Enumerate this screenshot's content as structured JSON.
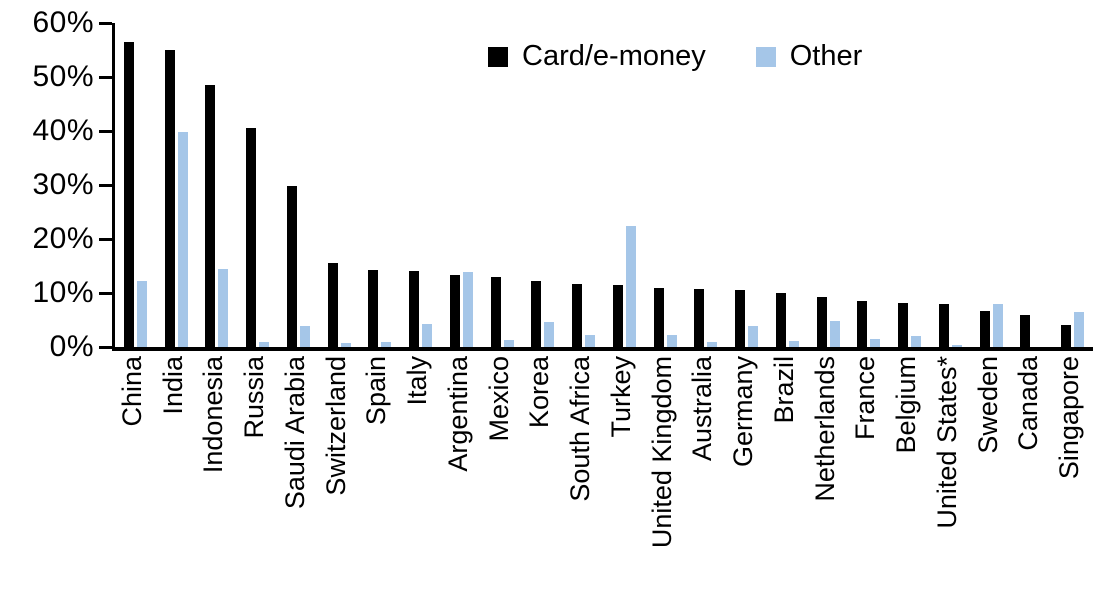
{
  "chart_data": {
    "type": "bar",
    "title": "",
    "xlabel": "",
    "ylabel": "",
    "ylim": [
      0,
      60
    ],
    "yticks": [
      "0%",
      "10%",
      "20%",
      "30%",
      "40%",
      "50%",
      "60%"
    ],
    "grid": false,
    "legend_position": "top-center",
    "categories": [
      "China",
      "India",
      "Indonesia",
      "Russia",
      "Saudi Arabia",
      "Switzerland",
      "Spain",
      "Italy",
      "Argentina",
      "Mexico",
      "Korea",
      "South Africa",
      "Turkey",
      "United Kingdom",
      "Australia",
      "Germany",
      "Brazil",
      "Netherlands",
      "France",
      "Belgium",
      "United States*",
      "Sweden",
      "Canada",
      "Singapore"
    ],
    "series": [
      {
        "name": "Card/e-money",
        "color": "#000000",
        "values": [
          56.5,
          55,
          48.5,
          40.5,
          29.8,
          15.5,
          14.2,
          14.1,
          13.3,
          13,
          12.2,
          11.7,
          11.5,
          11,
          10.8,
          10.5,
          10,
          9.3,
          8.6,
          8.2,
          7.9,
          6.6,
          6,
          4
        ]
      },
      {
        "name": "Other",
        "color": "#A5C6E8",
        "values": [
          12.2,
          39.8,
          14.5,
          1,
          3.8,
          0.8,
          1,
          4.3,
          13.8,
          1.3,
          4.6,
          2.2,
          22.5,
          2.3,
          1,
          3.9,
          1.2,
          4.8,
          1.5,
          2,
          0.3,
          8,
          0,
          6.5
        ]
      }
    ],
    "axis_color": "#000000"
  }
}
